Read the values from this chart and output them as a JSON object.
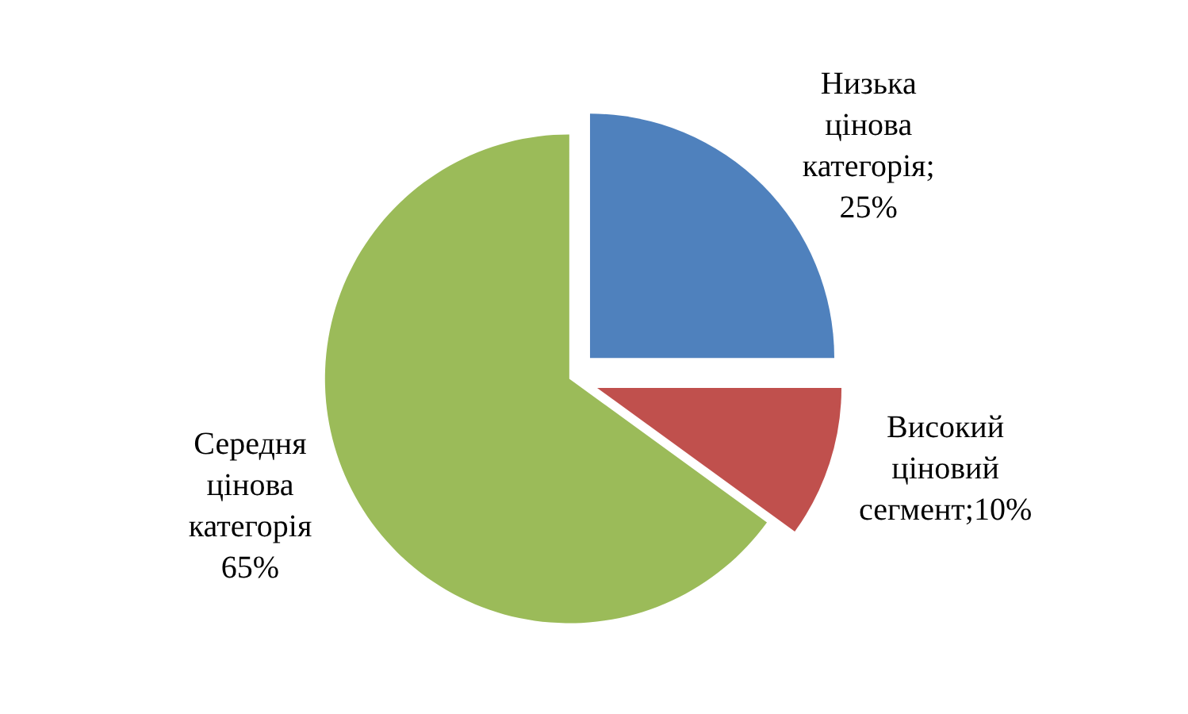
{
  "chart_data": {
    "type": "pie",
    "categories": [
      "Низька цінова категорія",
      "Високий ціновий сегмент",
      "Середня цінова категорія"
    ],
    "values": [
      25,
      10,
      65
    ],
    "colors": [
      "#4f81bd",
      "#c0504d",
      "#9bbb59"
    ],
    "value_labels": [
      "; 25%",
      ";10%",
      " 65%"
    ],
    "legend": false
  }
}
